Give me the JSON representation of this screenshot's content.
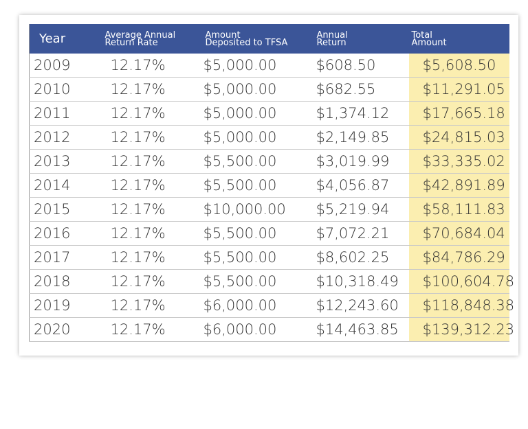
{
  "table": {
    "header": [
      [
        "Year"
      ],
      [
        "Average Annual",
        "Return Rate"
      ],
      [
        "Amount",
        "Deposited to TFSA"
      ],
      [
        "Annual",
        "Return"
      ],
      [
        "Total",
        "Amount"
      ]
    ],
    "rows": [
      [
        "2009",
        "12.17%",
        "$5,000.00",
        "$608.50",
        "$5,608.50"
      ],
      [
        "2010",
        "12.17%",
        "$5,000.00",
        "$682.55",
        "$11,291.05"
      ],
      [
        "2011",
        "12.17%",
        "$5,000.00",
        "$1,374.12",
        "$17,665.18"
      ],
      [
        "2012",
        "12.17%",
        "$5,000.00",
        "$2,149.85",
        "$24,815.03"
      ],
      [
        "2013",
        "12.17%",
        "$5,500.00",
        "$3,019.99",
        "$33,335.02"
      ],
      [
        "2014",
        "12.17%",
        "$5,500.00",
        "$4,056.87",
        "$42,891.89"
      ],
      [
        "2015",
        "12.17%",
        "$10,000.00",
        "$5,219.94",
        "$58,111.83"
      ],
      [
        "2016",
        "12.17%",
        "$5,500.00",
        "$7,072.21",
        "$70,684.04"
      ],
      [
        "2017",
        "12.17%",
        "$5,500.00",
        "$8,602.25",
        "$84,786.29"
      ],
      [
        "2018",
        "12.17%",
        "$5,500.00",
        "$10,318.49",
        "$100,604.78"
      ],
      [
        "2019",
        "12.17%",
        "$6,000.00",
        "$12,243.60",
        "$118,848.38"
      ],
      [
        "2020",
        "12.17%",
        "$6,000.00",
        "$14,463.85",
        "$139,312.23"
      ]
    ]
  }
}
